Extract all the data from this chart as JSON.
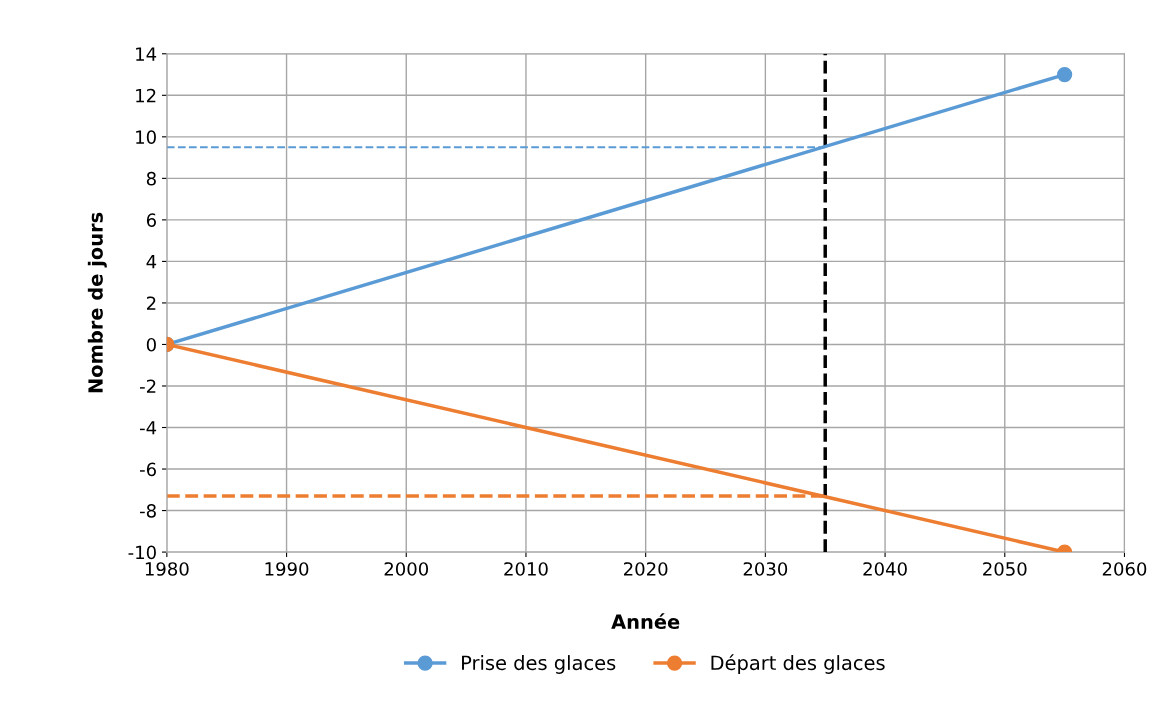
{
  "chart_data": {
    "type": "line",
    "xlabel": "Année",
    "ylabel": "Nombre de jours",
    "xlim": [
      1980,
      2060
    ],
    "xticks": [
      1980,
      1990,
      2000,
      2010,
      2020,
      2030,
      2040,
      2050,
      2060
    ],
    "ylim": [
      -10,
      14
    ],
    "yticks": [
      -10,
      -8,
      -6,
      -4,
      -2,
      0,
      2,
      4,
      6,
      8,
      10,
      12,
      14
    ],
    "grid": true,
    "legend": "bottom",
    "series": [
      {
        "name": "Prise des glaces",
        "color": "#5b9bd5",
        "x": [
          1980,
          2055
        ],
        "values": [
          0,
          13
        ],
        "marker": "circle"
      },
      {
        "name": "Départ des glaces",
        "color": "#ed7d31",
        "x": [
          1980,
          2055
        ],
        "values": [
          0,
          -10
        ],
        "marker": "circle"
      },
      {
        "color": "#5b9bd5",
        "x": [
          1980,
          2035
        ],
        "values": [
          9.5,
          9.5
        ],
        "line_style": "dashed",
        "marker": "none"
      },
      {
        "color": "#ed7d31",
        "x": [
          1980,
          2035
        ],
        "values": [
          -7.3,
          -7.3
        ],
        "line_style": "dashed",
        "marker": "none"
      }
    ],
    "ref_lines": [
      {
        "axis": "x",
        "value": 2035,
        "color": "#000000",
        "line_style": "dashed"
      }
    ]
  }
}
